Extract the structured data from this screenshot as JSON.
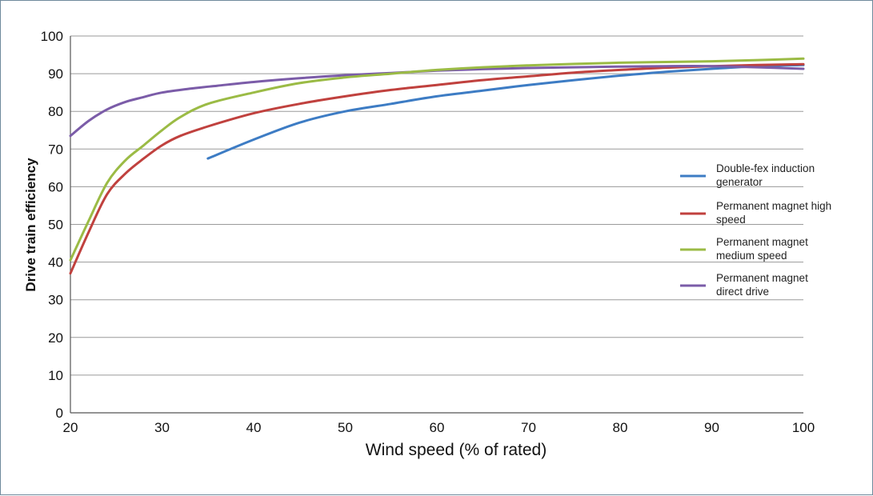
{
  "chart_data": {
    "type": "line",
    "title": "",
    "xlabel": "Wind speed (% of rated)",
    "ylabel": "Drive train efficiency",
    "xlim": [
      20,
      100
    ],
    "ylim": [
      0,
      100
    ],
    "xticks": [
      20,
      30,
      40,
      50,
      60,
      70,
      80,
      90,
      100
    ],
    "yticks": [
      0,
      10,
      20,
      30,
      40,
      50,
      60,
      70,
      80,
      90,
      100
    ],
    "grid": "horizontal",
    "legend_position": "right",
    "series": [
      {
        "name_lines": [
          "Double-fex induction",
          "generator"
        ],
        "color": "#3d7cc4",
        "points": [
          [
            35,
            67.5
          ],
          [
            40,
            72.5
          ],
          [
            45,
            77
          ],
          [
            50,
            80
          ],
          [
            55,
            82
          ],
          [
            60,
            84
          ],
          [
            65,
            85.5
          ],
          [
            70,
            87
          ],
          [
            75,
            88.3
          ],
          [
            80,
            89.5
          ],
          [
            85,
            90.5
          ],
          [
            90,
            91.3
          ],
          [
            95,
            92
          ],
          [
            100,
            92.3
          ]
        ]
      },
      {
        "name_lines": [
          "Permanent magnet high",
          "speed"
        ],
        "color": "#c0413e",
        "points": [
          [
            20,
            37
          ],
          [
            22,
            48
          ],
          [
            24,
            58
          ],
          [
            26,
            63.5
          ],
          [
            28,
            67.5
          ],
          [
            30,
            71
          ],
          [
            32,
            73.5
          ],
          [
            35,
            76
          ],
          [
            40,
            79.5
          ],
          [
            45,
            82
          ],
          [
            50,
            84
          ],
          [
            55,
            85.7
          ],
          [
            60,
            87
          ],
          [
            65,
            88.3
          ],
          [
            70,
            89.3
          ],
          [
            75,
            90.3
          ],
          [
            80,
            91
          ],
          [
            85,
            91.6
          ],
          [
            90,
            92
          ],
          [
            95,
            92.3
          ],
          [
            100,
            92.5
          ]
        ]
      },
      {
        "name_lines": [
          "Permanent magnet",
          "medium speed"
        ],
        "color": "#9bbb45",
        "points": [
          [
            20,
            40.5
          ],
          [
            22,
            51
          ],
          [
            24,
            61
          ],
          [
            26,
            67
          ],
          [
            28,
            71
          ],
          [
            30,
            75
          ],
          [
            32,
            78.5
          ],
          [
            35,
            82
          ],
          [
            40,
            85
          ],
          [
            45,
            87.5
          ],
          [
            50,
            89
          ],
          [
            55,
            90
          ],
          [
            60,
            91
          ],
          [
            65,
            91.7
          ],
          [
            70,
            92.2
          ],
          [
            75,
            92.6
          ],
          [
            80,
            92.9
          ],
          [
            85,
            93.1
          ],
          [
            90,
            93.3
          ],
          [
            95,
            93.6
          ],
          [
            100,
            94
          ]
        ]
      },
      {
        "name_lines": [
          "Permanent magnet",
          "direct drive"
        ],
        "color": "#7b5ca8",
        "points": [
          [
            20,
            73.5
          ],
          [
            22,
            77.5
          ],
          [
            24,
            80.5
          ],
          [
            26,
            82.5
          ],
          [
            28,
            83.8
          ],
          [
            30,
            85
          ],
          [
            33,
            86
          ],
          [
            36,
            86.8
          ],
          [
            40,
            87.8
          ],
          [
            45,
            88.8
          ],
          [
            50,
            89.6
          ],
          [
            55,
            90.2
          ],
          [
            60,
            90.8
          ],
          [
            65,
            91.2
          ],
          [
            70,
            91.5
          ],
          [
            75,
            91.7
          ],
          [
            80,
            91.9
          ],
          [
            85,
            92
          ],
          [
            90,
            92
          ],
          [
            95,
            91.7
          ],
          [
            100,
            91.3
          ]
        ]
      }
    ]
  }
}
